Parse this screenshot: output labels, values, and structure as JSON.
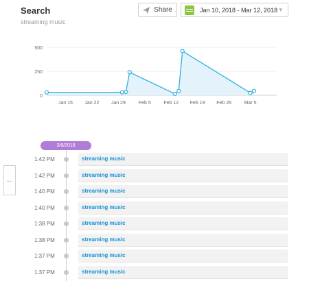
{
  "header": {
    "title": "Search",
    "subtitle": "streaming music",
    "share_label": "Share",
    "date_range": "Jan 10, 2018 - Mar 12, 2018"
  },
  "colors": {
    "line": "#2bb0df",
    "area": "#e3f2fb",
    "accent_green": "#8cc63f",
    "pill": "#b07cd8",
    "link": "#1b8fd4"
  },
  "chart_data": {
    "type": "area",
    "x": [
      "2018-01-10",
      "2018-01-30",
      "2018-01-31",
      "2018-02-01",
      "2018-02-13",
      "2018-02-14",
      "2018-02-15",
      "2018-03-05",
      "2018-03-06"
    ],
    "values": [
      30,
      30,
      35,
      240,
      15,
      45,
      460,
      25,
      45
    ],
    "xticks": [
      "Jan 15",
      "Jan 22",
      "Jan 29",
      "Feb 5",
      "Feb 12",
      "Feb 19",
      "Feb 26",
      "Mar 5"
    ],
    "yticks": [
      "0",
      "250",
      "500"
    ],
    "ylim": [
      0,
      500
    ],
    "grid": true
  },
  "timeline": {
    "date_label": "3/6/2018",
    "entries": [
      {
        "time": "1:42 PM",
        "text": "streaming music"
      },
      {
        "time": "1:42 PM",
        "text": "streaming music"
      },
      {
        "time": "1:40 PM",
        "text": "streaming music"
      },
      {
        "time": "1:40 PM",
        "text": "streaming music"
      },
      {
        "time": "1:38 PM",
        "text": "streaming music"
      },
      {
        "time": "1:38 PM",
        "text": "streaming music"
      },
      {
        "time": "1:37 PM",
        "text": "streaming music"
      },
      {
        "time": "1:37 PM",
        "text": "streaming music"
      }
    ]
  }
}
